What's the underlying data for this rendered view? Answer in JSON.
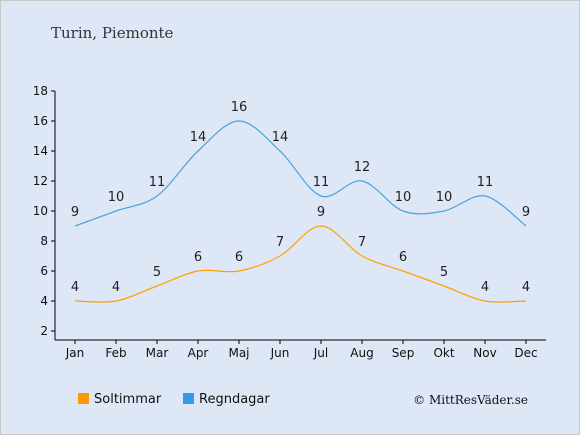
{
  "chart_data": {
    "type": "line",
    "title": "Turin, Piemonte",
    "categories": [
      "Jan",
      "Feb",
      "Mar",
      "Apr",
      "Maj",
      "Jun",
      "Jul",
      "Aug",
      "Sep",
      "Okt",
      "Nov",
      "Dec"
    ],
    "series": [
      {
        "name": "Soltimmar",
        "color": "#ffa100",
        "values": [
          4,
          4,
          5,
          6,
          6,
          7,
          9,
          7,
          6,
          5,
          4,
          4
        ]
      },
      {
        "name": "Regndagar",
        "color": "#4aa3e0",
        "values": [
          9,
          10,
          11,
          14,
          16,
          14,
          11,
          12,
          10,
          10,
          11,
          9
        ]
      }
    ],
    "yticks": [
      2,
      4,
      6,
      8,
      10,
      12,
      14,
      16,
      18
    ],
    "ylim": [
      2,
      18
    ],
    "legend_position": "bottom-left",
    "legend_colors": {
      "Soltimmar": "#ff9900",
      "Regndagar": "#3399ee"
    },
    "grid": false
  },
  "footer": {
    "copyright": "© MittResVäder.se"
  }
}
